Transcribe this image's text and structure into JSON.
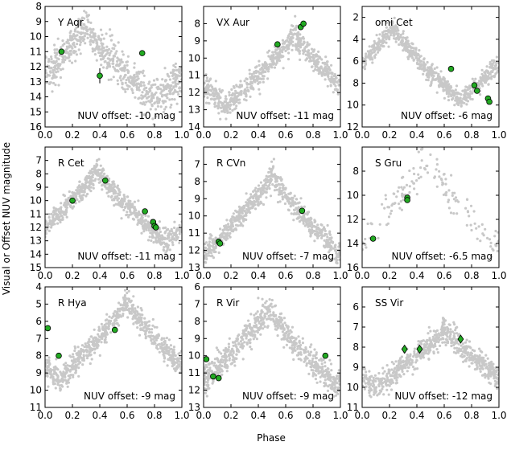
{
  "figure": {
    "ylabel": "Visual or Offset NUV magnitude",
    "xlabel": "Phase",
    "x_ticks": [
      "0.0",
      "0.2",
      "0.4",
      "0.6",
      "0.8",
      "1.0"
    ],
    "colors": {
      "visual_points": "#c8c8c8",
      "nuv_marker_fill": "#22aa22",
      "nuv_marker_edge": "#000000",
      "frame": "#000000"
    }
  },
  "chart_data": [
    {
      "type": "scatter",
      "title": "Y Aqr",
      "annotation": "NUV offset: -10 mag",
      "xlim": [
        0,
        1
      ],
      "ylim": [
        16,
        8
      ],
      "y_inverted": true,
      "y_ticks": [
        8,
        9,
        10,
        11,
        12,
        13,
        14,
        15,
        16
      ],
      "visual_curve": {
        "peak_phase": 0.3,
        "min_mag": 9.3,
        "max_mag": 14.3,
        "scatter": 0.6
      },
      "nuv_marker": "circle",
      "nuv_points": [
        {
          "x": 0.12,
          "y": 11.0
        },
        {
          "x": 0.4,
          "y": 12.6,
          "yerr": 0.5
        },
        {
          "x": 0.71,
          "y": 11.1
        }
      ]
    },
    {
      "type": "scatter",
      "title": "VX Aur",
      "annotation": "NUV offset: -11 mag",
      "xlim": [
        0,
        1
      ],
      "ylim": [
        14,
        7
      ],
      "y_inverted": true,
      "y_ticks": [
        8,
        9,
        10,
        11,
        12,
        13,
        14
      ],
      "visual_curve": {
        "peak_phase": 0.66,
        "min_mag": 8.6,
        "max_mag": 12.8,
        "scatter": 0.35
      },
      "nuv_marker": "circle",
      "nuv_points": [
        {
          "x": 0.54,
          "y": 9.2
        },
        {
          "x": 0.71,
          "y": 8.2
        },
        {
          "x": 0.73,
          "y": 8.0
        }
      ]
    },
    {
      "type": "scatter",
      "title": "omi Cet",
      "annotation": "NUV offset: -6 mag",
      "xlim": [
        0,
        1
      ],
      "ylim": [
        12,
        1
      ],
      "y_inverted": true,
      "y_ticks": [
        2,
        4,
        6,
        8,
        10,
        12
      ],
      "visual_curve": {
        "peak_phase": 0.22,
        "min_mag": 2.8,
        "max_mag": 9.6,
        "scatter": 0.45
      },
      "nuv_marker": "circle",
      "nuv_points": [
        {
          "x": 0.65,
          "y": 6.7
        },
        {
          "x": 0.82,
          "y": 8.2
        },
        {
          "x": 0.84,
          "y": 8.7
        },
        {
          "x": 0.92,
          "y": 9.4
        },
        {
          "x": 0.93,
          "y": 9.7
        }
      ]
    },
    {
      "type": "scatter",
      "title": "R Cet",
      "annotation": "NUV offset: -11 mag",
      "xlim": [
        0,
        1
      ],
      "ylim": [
        15,
        6
      ],
      "y_inverted": true,
      "y_ticks": [
        7,
        8,
        9,
        10,
        11,
        12,
        13,
        14,
        15
      ],
      "visual_curve": {
        "peak_phase": 0.38,
        "min_mag": 7.7,
        "max_mag": 13.2,
        "scatter": 0.4
      },
      "nuv_marker": "circle",
      "nuv_points": [
        {
          "x": 0.2,
          "y": 10.0
        },
        {
          "x": 0.44,
          "y": 8.5
        },
        {
          "x": 0.73,
          "y": 10.8
        },
        {
          "x": 0.79,
          "y": 11.6
        },
        {
          "x": 0.8,
          "y": 11.9
        },
        {
          "x": 0.81,
          "y": 12.0
        }
      ]
    },
    {
      "type": "scatter",
      "title": "R CVn",
      "annotation": "NUV offset: -7 mag",
      "xlim": [
        0,
        1
      ],
      "ylim": [
        13,
        6
      ],
      "y_inverted": true,
      "y_ticks": [
        7,
        8,
        9,
        10,
        11,
        12,
        13
      ],
      "visual_curve": {
        "peak_phase": 0.5,
        "min_mag": 7.6,
        "max_mag": 12.3,
        "scatter": 0.35
      },
      "nuv_marker": "circle",
      "nuv_points": [
        {
          "x": 0.11,
          "y": 11.5
        },
        {
          "x": 0.12,
          "y": 11.6
        },
        {
          "x": 0.72,
          "y": 9.7
        }
      ]
    },
    {
      "type": "scatter",
      "title": "S Gru",
      "annotation": "NUV offset: -6.5 mag",
      "xlim": [
        0,
        1
      ],
      "ylim": [
        16,
        6
      ],
      "y_inverted": true,
      "y_ticks": [
        8,
        10,
        12,
        14,
        16
      ],
      "visual_curve": {
        "peak_phase": 0.47,
        "min_mag": 6.8,
        "max_mag": 14.3,
        "scatter": 0.7,
        "sparse": true
      },
      "nuv_marker": "circle",
      "nuv_points": [
        {
          "x": 0.08,
          "y": 13.6
        },
        {
          "x": 0.33,
          "y": 10.2
        },
        {
          "x": 0.33,
          "y": 10.4
        }
      ]
    },
    {
      "type": "scatter",
      "title": "R Hya",
      "annotation": "NUV offset: -9 mag",
      "xlim": [
        0,
        1
      ],
      "ylim": [
        11,
        4
      ],
      "y_inverted": true,
      "y_ticks": [
        4,
        5,
        6,
        7,
        8,
        9,
        10,
        11
      ],
      "visual_curve": {
        "peak_phase": 0.6,
        "min_mag": 4.8,
        "max_mag": 9.4,
        "scatter": 0.35
      },
      "nuv_marker": "circle",
      "nuv_points": [
        {
          "x": 0.02,
          "y": 6.4
        },
        {
          "x": 0.1,
          "y": 8.0
        },
        {
          "x": 0.51,
          "y": 6.5
        }
      ]
    },
    {
      "type": "scatter",
      "title": "R Vir",
      "annotation": "NUV offset: -9 mag",
      "xlim": [
        0,
        1
      ],
      "ylim": [
        13,
        6
      ],
      "y_inverted": true,
      "y_ticks": [
        6,
        7,
        8,
        9,
        10,
        11,
        12,
        13
      ],
      "visual_curve": {
        "peak_phase": 0.47,
        "min_mag": 7.2,
        "max_mag": 11.7,
        "scatter": 0.4
      },
      "nuv_marker": "circle",
      "nuv_points": [
        {
          "x": 0.02,
          "y": 10.2
        },
        {
          "x": 0.07,
          "y": 11.2
        },
        {
          "x": 0.11,
          "y": 11.3
        },
        {
          "x": 0.89,
          "y": 10.0
        }
      ]
    },
    {
      "type": "scatter",
      "title": "SS Vir",
      "annotation": "NUV offset: -12 mag",
      "xlim": [
        0,
        1
      ],
      "ylim": [
        11,
        5
      ],
      "y_inverted": true,
      "y_ticks": [
        6,
        7,
        8,
        9,
        10,
        11
      ],
      "visual_curve": {
        "peak_phase": 0.6,
        "min_mag": 7.1,
        "max_mag": 10.0,
        "scatter": 0.3
      },
      "nuv_marker": "diamond",
      "nuv_points": [
        {
          "x": 0.31,
          "y": 8.1
        },
        {
          "x": 0.42,
          "y": 8.1
        },
        {
          "x": 0.72,
          "y": 7.6
        }
      ]
    }
  ]
}
